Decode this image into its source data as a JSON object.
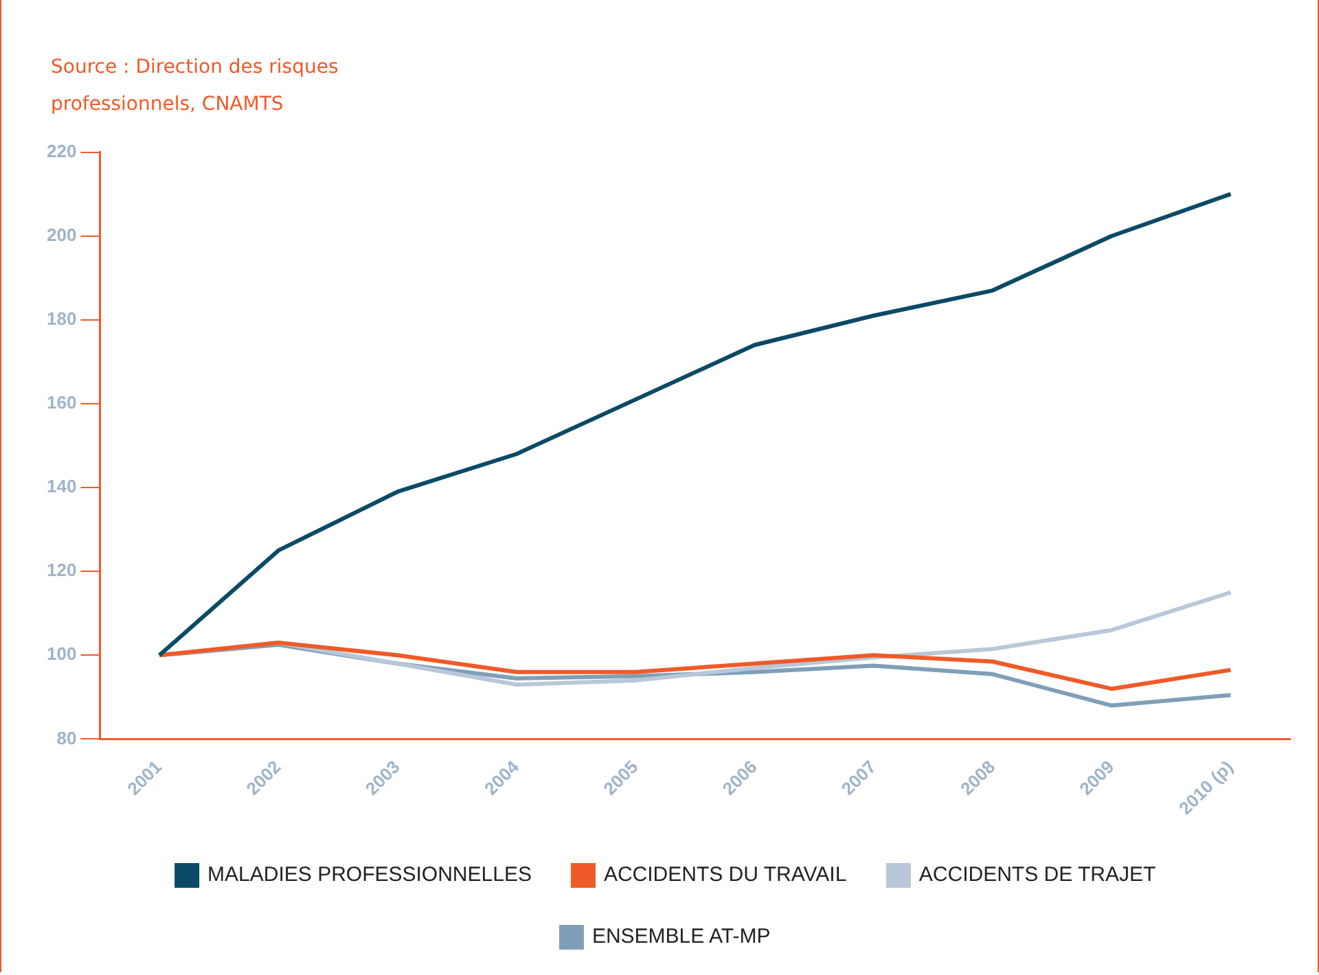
{
  "chart_data": {
    "type": "line",
    "annotations": [
      "Source : Direction des risques professionnels, CNAMTS"
    ],
    "categories": [
      "2001",
      "2002",
      "2003",
      "2004",
      "2005",
      "2006",
      "2007",
      "2008",
      "2009",
      "2010 (p)"
    ],
    "series": [
      {
        "name": "MALADIES PROFESSIONNELLES",
        "color": "#0b4a66",
        "values": [
          100,
          125,
          139,
          148,
          161,
          174,
          181,
          187,
          200,
          210
        ]
      },
      {
        "name": "ACCIDENTS DU TRAVAIL",
        "color": "#f05a28",
        "values": [
          100,
          103,
          100,
          96,
          96,
          98,
          100,
          98.5,
          92,
          96.5
        ]
      },
      {
        "name": "ACCIDENTS DE TRAJET",
        "color": "#b8c8d8",
        "values": [
          100,
          103,
          98,
          93,
          94,
          97,
          99.5,
          101.5,
          106,
          115
        ]
      },
      {
        "name": "ENSEMBLE AT-MP",
        "color": "#7f9fb8",
        "values": [
          100,
          102.5,
          98,
          94.5,
          95,
          96,
          97.5,
          95.5,
          88,
          90.5
        ]
      }
    ],
    "ylim": [
      80,
      220
    ],
    "yticks": [
      80,
      100,
      120,
      140,
      160,
      180,
      200,
      220
    ],
    "grid": false,
    "legend": "bottom",
    "marker": "none",
    "line_style": "solid"
  }
}
